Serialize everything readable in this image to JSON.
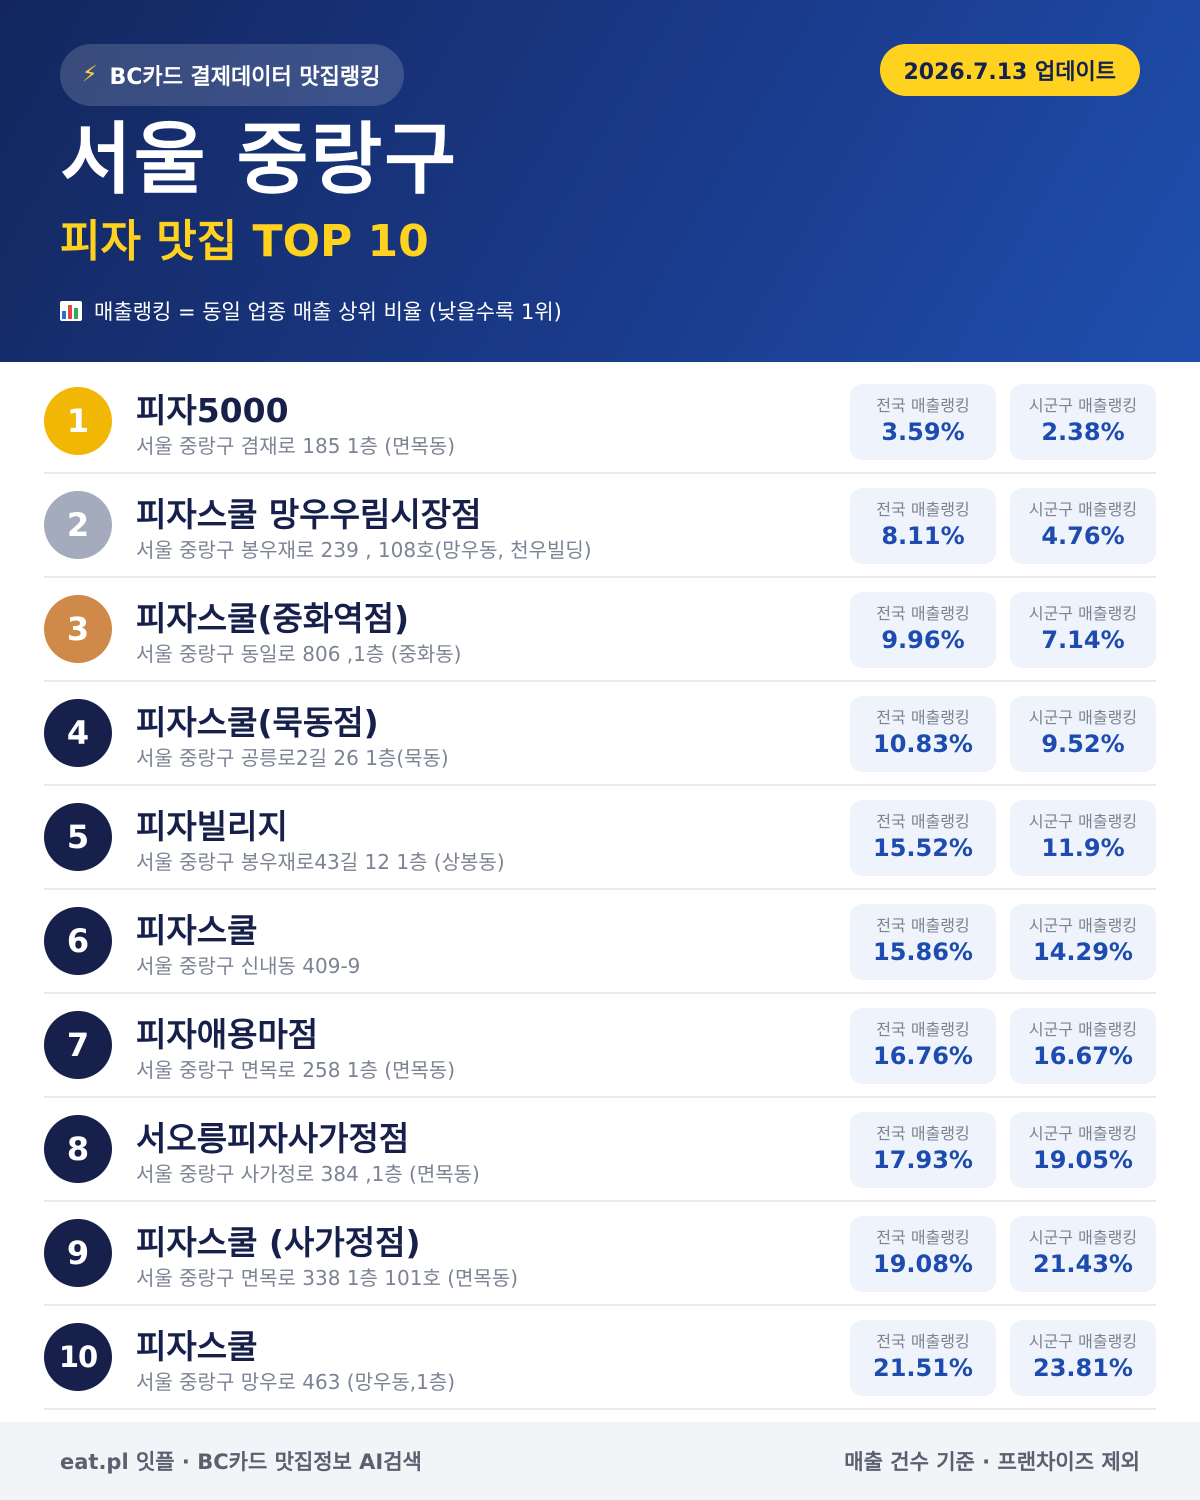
{
  "header": {
    "source_badge": "BC카드 결제데이터 맛집랭킹",
    "update_date": "2026.7.13 업데이트",
    "region": "서울 중랑구",
    "subtitle": "피자 맛집 TOP 10",
    "note": "매출랭킹 = 동일 업종 매출 상위 비율 (낮을수록 1위)",
    "note_icon": "bar-chart-icon",
    "source_icon": "lightning-icon"
  },
  "colors": {
    "gold": "#f2b705",
    "silver": "#a3abbd",
    "bronze": "#cf8a4a",
    "navy": "#16204a",
    "accent_yellow": "#ffd21f",
    "value_blue": "#1e4bb0"
  },
  "labels": {
    "national": "전국 매출랭킹",
    "local": "시군구 매출랭킹"
  },
  "restaurants": [
    {
      "rank": "1",
      "name": "피자5000",
      "address": "서울 중랑구 겸재로 185 1층 (면목동)",
      "national": "3.59%",
      "local": "2.38%"
    },
    {
      "rank": "2",
      "name": "피자스쿨 망우우림시장점",
      "address": "서울 중랑구 봉우재로 239 , 108호(망우동, 천우빌딩)",
      "national": "8.11%",
      "local": "4.76%"
    },
    {
      "rank": "3",
      "name": "피자스쿨(중화역점)",
      "address": "서울 중랑구 동일로 806 ,1층 (중화동)",
      "national": "9.96%",
      "local": "7.14%"
    },
    {
      "rank": "4",
      "name": "피자스쿨(묵동점)",
      "address": "서울 중랑구 공릉로2길 26 1층(묵동)",
      "national": "10.83%",
      "local": "9.52%"
    },
    {
      "rank": "5",
      "name": "피자빌리지",
      "address": "서울 중랑구 봉우재로43길 12 1층 (상봉동)",
      "national": "15.52%",
      "local": "11.9%"
    },
    {
      "rank": "6",
      "name": "피자스쿨",
      "address": "서울 중랑구 신내동 409-9",
      "national": "15.86%",
      "local": "14.29%"
    },
    {
      "rank": "7",
      "name": "피자애용마점",
      "address": "서울 중랑구 면목로 258 1층 (면목동)",
      "national": "16.76%",
      "local": "16.67%"
    },
    {
      "rank": "8",
      "name": "서오릉피자사가정점",
      "address": "서울 중랑구 사가정로 384 ,1층 (면목동)",
      "national": "17.93%",
      "local": "19.05%"
    },
    {
      "rank": "9",
      "name": "피자스쿨 (사가정점)",
      "address": "서울 중랑구 면목로 338 1층 101호 (면목동)",
      "national": "19.08%",
      "local": "21.43%"
    },
    {
      "rank": "10",
      "name": "피자스쿨",
      "address": "서울 중랑구 망우로 463 (망우동,1층)",
      "national": "21.51%",
      "local": "23.81%"
    }
  ],
  "footer": {
    "left": "eat.pl 잇플 · BC카드 맛집정보 AI검색",
    "right": "매출 건수 기준 · 프랜차이즈 제외"
  }
}
